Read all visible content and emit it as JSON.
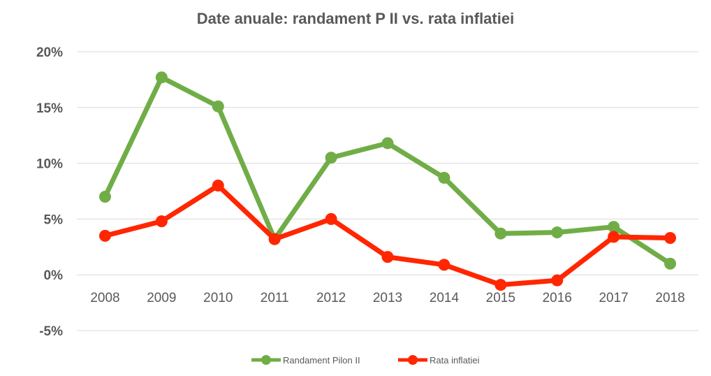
{
  "chart_data": {
    "type": "line",
    "title": "Date anuale: randament P II vs. rata inflatiei",
    "xlabel": "",
    "ylabel": "",
    "x": [
      "2008",
      "2009",
      "2010",
      "2011",
      "2012",
      "2013",
      "2014",
      "2015",
      "2016",
      "2017",
      "2018"
    ],
    "y_ticks": [
      "20%",
      "15%",
      "10%",
      "5%",
      "0%",
      "-5%"
    ],
    "ylim": [
      -5,
      20
    ],
    "grid": true,
    "legend_position": "bottom",
    "series": [
      {
        "name": "Randament Pilon II",
        "color": "#70AD47",
        "values": [
          7.0,
          17.7,
          15.1,
          3.2,
          10.5,
          11.8,
          8.7,
          3.7,
          3.8,
          4.3,
          1.0
        ]
      },
      {
        "name": "Rata inflatiei",
        "color": "#FF2600",
        "values": [
          3.5,
          4.8,
          8.0,
          3.2,
          5.0,
          1.6,
          0.9,
          -0.9,
          -0.5,
          3.4,
          3.3
        ]
      }
    ]
  }
}
